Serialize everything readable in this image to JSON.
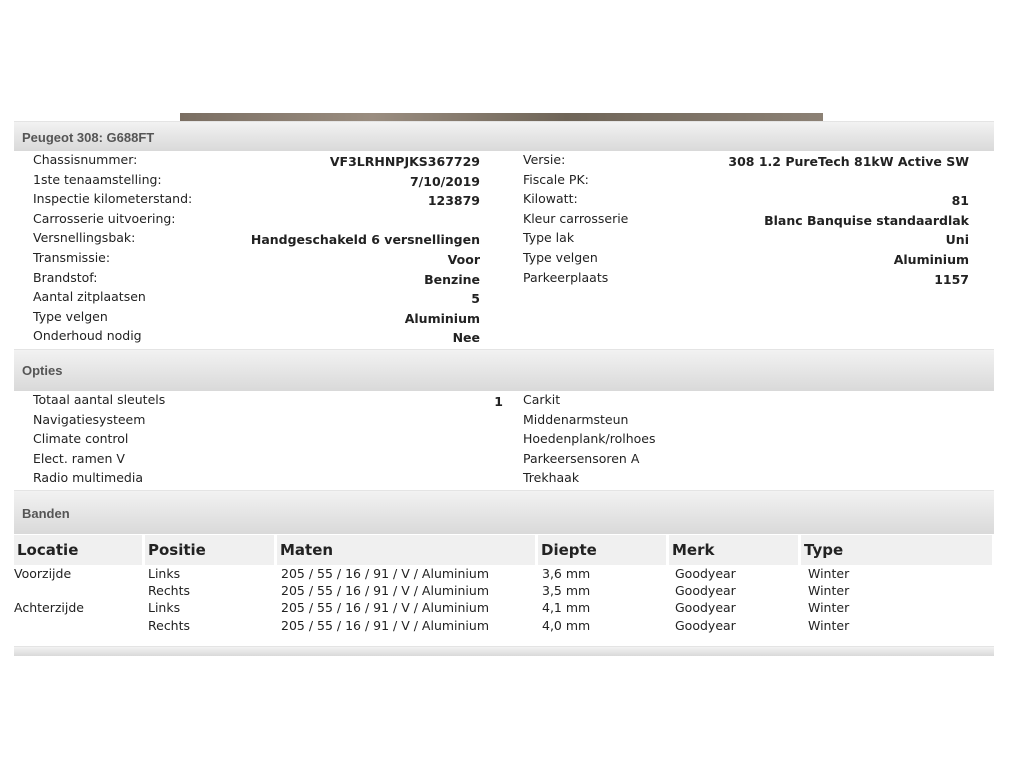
{
  "vehicle": {
    "title": "Peugeot 308: G688FT",
    "left": [
      {
        "label": "Chassisnummer:",
        "value": "VF3LRHNPJKS367729"
      },
      {
        "label": "1ste tenaamstelling:",
        "value": "7/10/2019"
      },
      {
        "label": "Inspectie kilometerstand:",
        "value": "123879"
      },
      {
        "label": "Carrosserie uitvoering:",
        "value": ""
      },
      {
        "label": "Versnellingsbak:",
        "value": "Handgeschakeld 6 versnellingen"
      },
      {
        "label": "Transmissie:",
        "value": "Voor"
      },
      {
        "label": "Brandstof:",
        "value": "Benzine"
      },
      {
        "label": "Aantal zitplaatsen",
        "value": "5"
      },
      {
        "label": "Type velgen",
        "value": "Aluminium"
      },
      {
        "label": "Onderhoud nodig",
        "value": "Nee"
      }
    ],
    "right": [
      {
        "label": "Versie:",
        "value": "308 1.2 PureTech 81kW Active SW"
      },
      {
        "label": "Fiscale PK:",
        "value": ""
      },
      {
        "label": "Kilowatt:",
        "value": "81"
      },
      {
        "label": "Kleur carrosserie",
        "value": "Blanc Banquise standaardlak"
      },
      {
        "label": "Type lak",
        "value": "Uni"
      },
      {
        "label": "Type velgen",
        "value": "Aluminium"
      },
      {
        "label": "Parkeerplaats",
        "value": "1157"
      }
    ]
  },
  "options": {
    "title": "Opties",
    "left": [
      {
        "label": "Totaal aantal sleutels",
        "value": "1"
      },
      {
        "label": "Navigatiesysteem",
        "value": ""
      },
      {
        "label": "Climate control",
        "value": ""
      },
      {
        "label": "Elect. ramen V",
        "value": ""
      },
      {
        "label": "Radio multimedia",
        "value": ""
      }
    ],
    "right": [
      {
        "label": "Carkit"
      },
      {
        "label": "Middenarmsteun"
      },
      {
        "label": "Hoedenplank/rolhoes"
      },
      {
        "label": "Parkeersensoren A"
      },
      {
        "label": "Trekhaak"
      }
    ]
  },
  "tires": {
    "title": "Banden",
    "columns": [
      "Locatie",
      "Positie",
      "Maten",
      "Diepte",
      "Merk",
      "Type"
    ],
    "rows": [
      [
        "Voorzijde",
        "Links",
        "205 / 55 / 16 / 91 / V / Aluminium",
        "3,6 mm",
        "Goodyear",
        "Winter"
      ],
      [
        "",
        "Rechts",
        "205 / 55 / 16 / 91 / V / Aluminium",
        "3,5 mm",
        "Goodyear",
        "Winter"
      ],
      [
        "Achterzijde",
        "Links",
        "205 / 55 / 16 / 91 / V / Aluminium",
        "4,1 mm",
        "Goodyear",
        "Winter"
      ],
      [
        "",
        "Rechts",
        "205 / 55 / 16 / 91 / V / Aluminium",
        "4,0 mm",
        "Goodyear",
        "Winter"
      ]
    ]
  }
}
